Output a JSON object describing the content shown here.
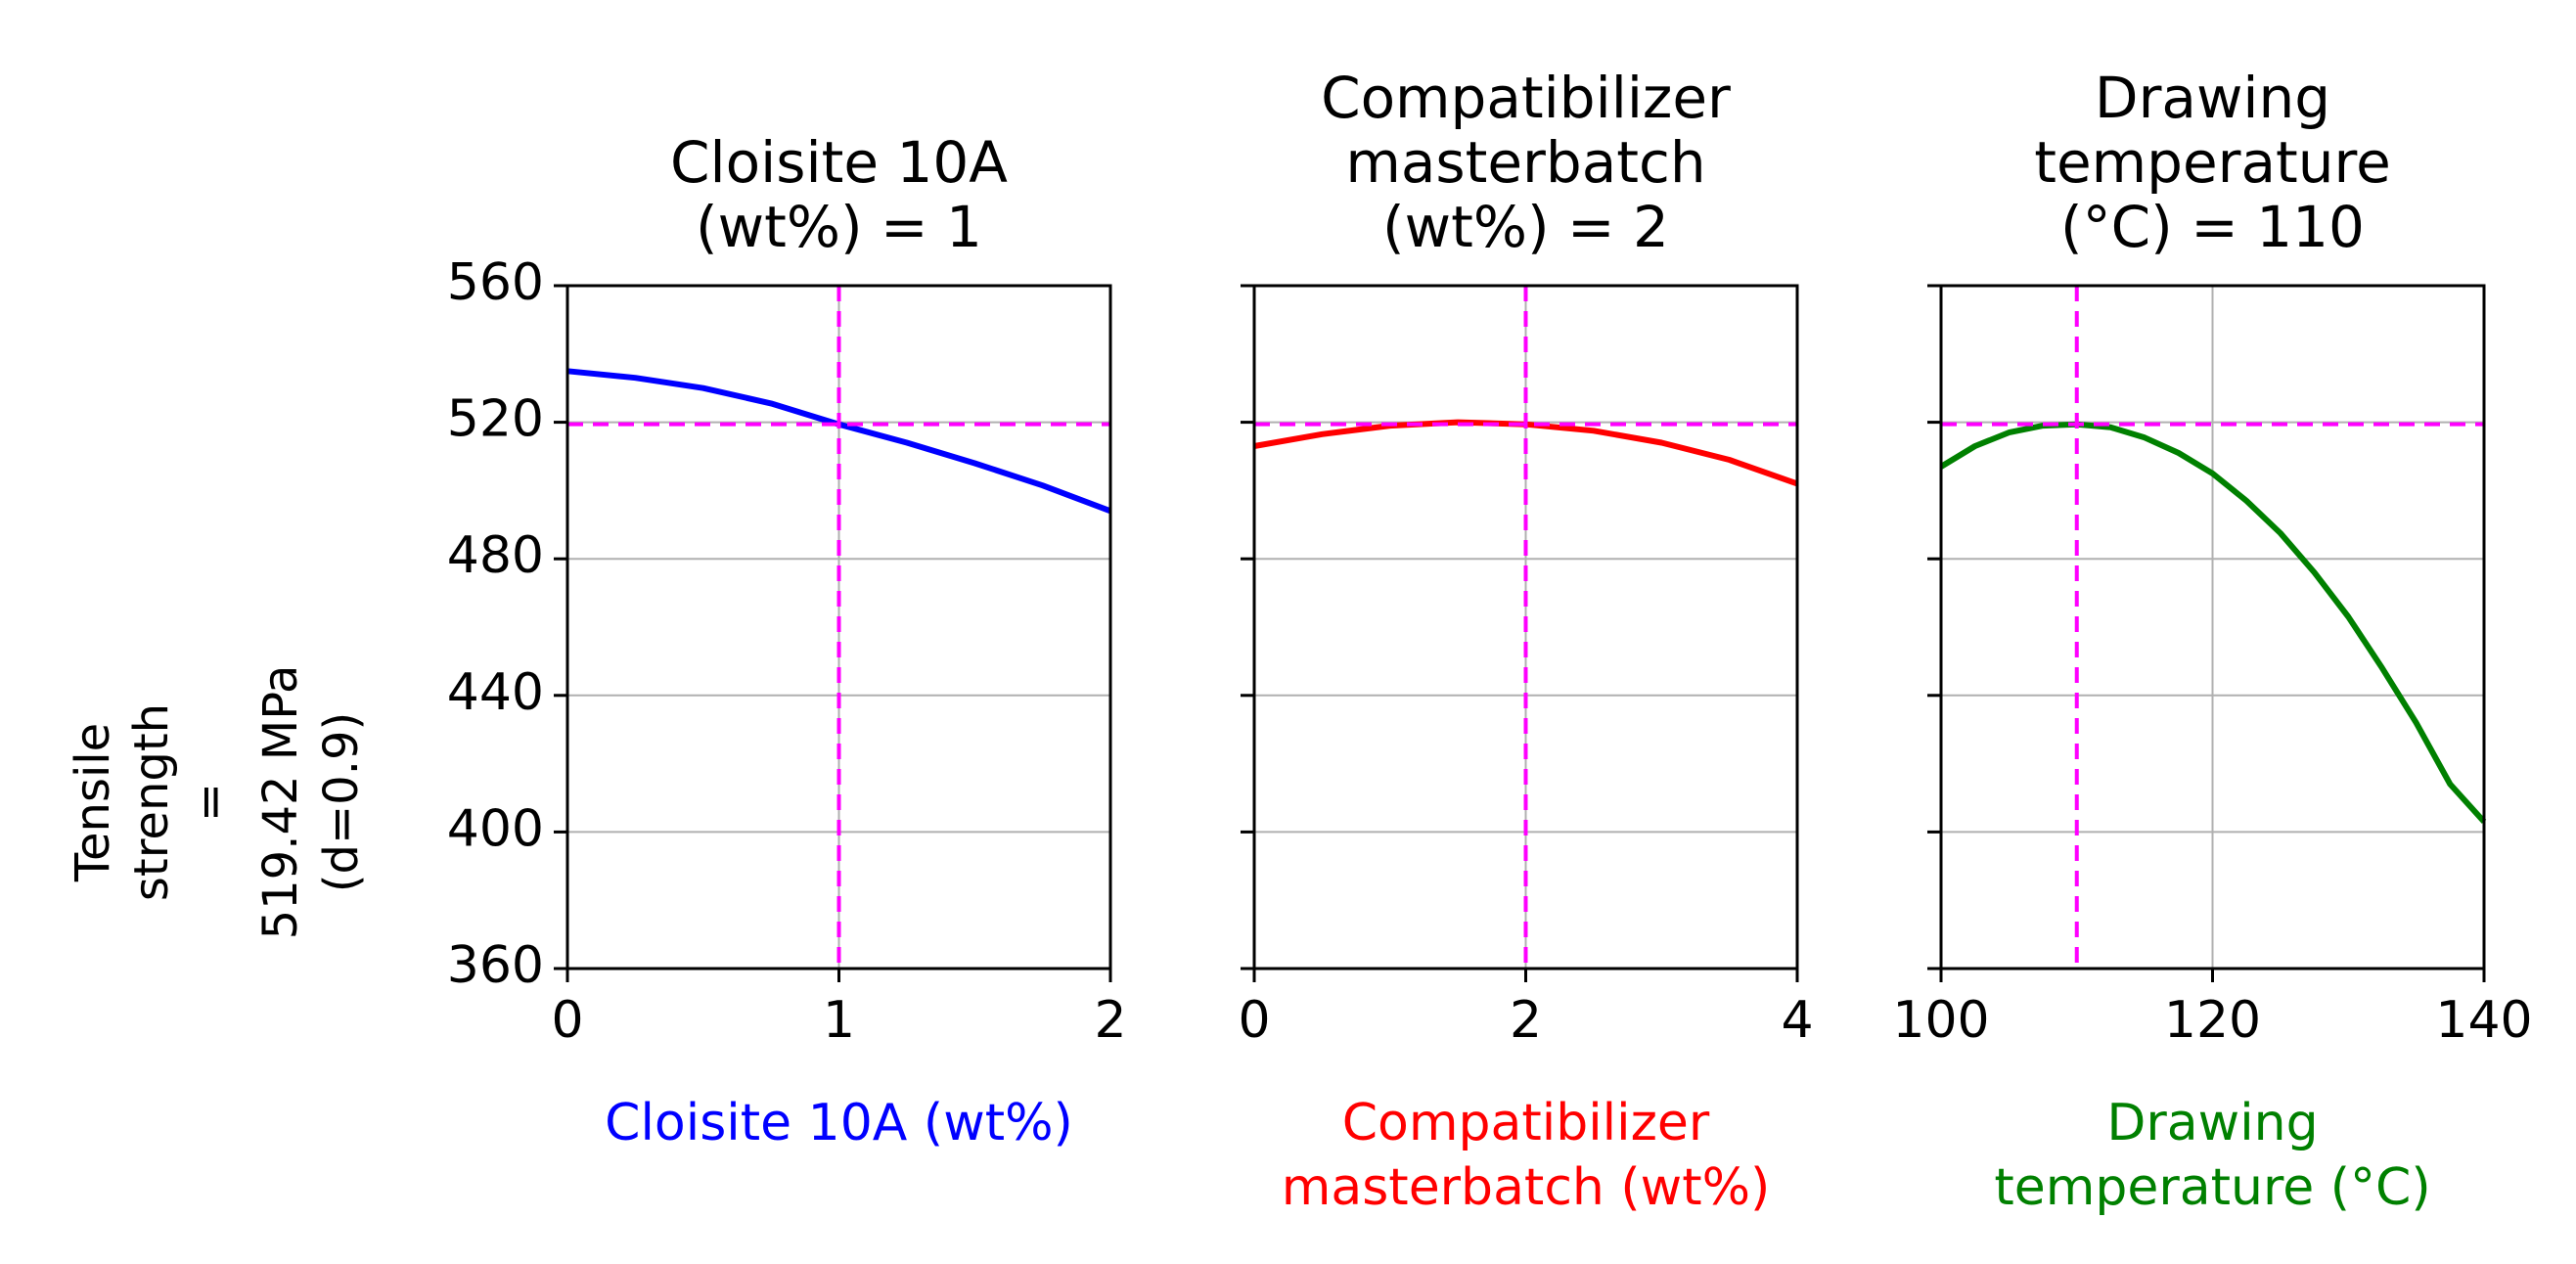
{
  "chart_data": {
    "type": "line",
    "ylabel_lines": [
      "Tensile",
      "strength",
      "=",
      "519.42 MPa",
      "(d=0.9)"
    ],
    "ylim": [
      360,
      560
    ],
    "yticks": [
      360,
      400,
      440,
      480,
      520,
      560
    ],
    "y_reference": 519.42,
    "reference_color": "#ff00ff",
    "panels": [
      {
        "title_lines": [
          "Cloisite 10A",
          "(wt%) = 1"
        ],
        "xlabel_lines": [
          "Cloisite 10A (wt%)"
        ],
        "xlabel_color": "#0000ff",
        "line_color": "#0000ff",
        "xlim": [
          0,
          2
        ],
        "xticks": [
          0,
          1,
          2
        ],
        "x_reference": 1,
        "x": [
          0,
          0.25,
          0.5,
          0.75,
          1.0,
          1.25,
          1.5,
          1.75,
          2.0
        ],
        "y": [
          535,
          533,
          530,
          525.5,
          519.4,
          514,
          508,
          501.5,
          494
        ]
      },
      {
        "title_lines": [
          "Compatibilizer",
          "masterbatch",
          "(wt%) = 2"
        ],
        "xlabel_lines": [
          "Compatibilizer",
          "masterbatch (wt%)"
        ],
        "xlabel_color": "#ff0000",
        "line_color": "#ff0000",
        "xlim": [
          0,
          4
        ],
        "xticks": [
          0,
          2,
          4
        ],
        "x_reference": 2,
        "x": [
          0,
          0.5,
          1.0,
          1.5,
          2.0,
          2.5,
          3.0,
          3.5,
          4.0
        ],
        "y": [
          513,
          516.5,
          519,
          520,
          519.4,
          517.5,
          514,
          509,
          502
        ]
      },
      {
        "title_lines": [
          "Drawing",
          "temperature",
          "(°C) = 110"
        ],
        "xlabel_lines": [
          "Drawing",
          "temperature (°C)"
        ],
        "xlabel_color": "#008000",
        "line_color": "#008000",
        "xlim": [
          100,
          140
        ],
        "xticks": [
          100,
          120,
          140
        ],
        "x_reference": 110,
        "x": [
          100,
          102.5,
          105,
          107.5,
          110,
          112.5,
          115,
          117.5,
          120,
          122.5,
          125,
          127.5,
          130,
          132.5,
          135,
          137.5,
          140
        ],
        "y": [
          507,
          513,
          517,
          519,
          519.4,
          518.5,
          515.5,
          511,
          505,
          497,
          487.5,
          476,
          463,
          448,
          432,
          414,
          403
        ]
      }
    ]
  }
}
